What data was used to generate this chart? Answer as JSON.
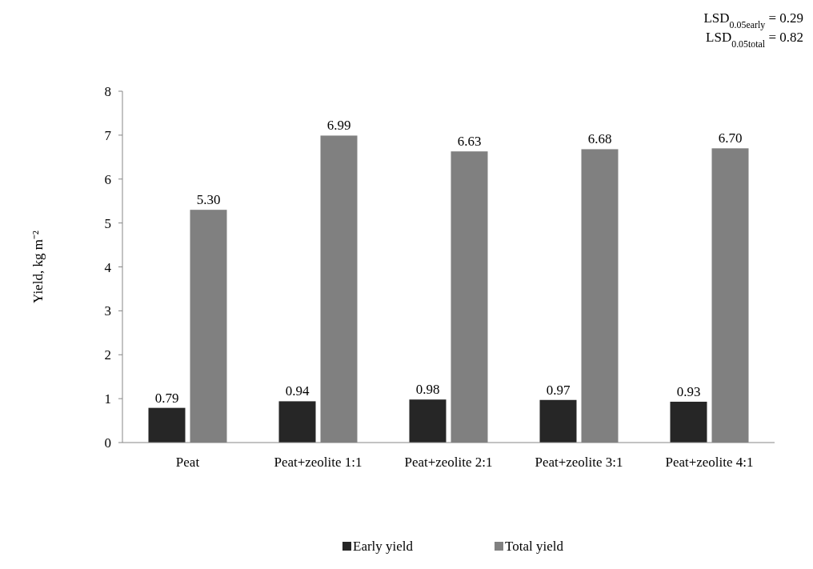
{
  "chart_data": {
    "type": "bar",
    "ylabel": "Yield, kg m⁻²",
    "categories": [
      "Peat",
      "Peat+zeolite 1:1",
      "Peat+zeolite 2:1",
      "Peat+zeolite 3:1",
      "Peat+zeolite 4:1"
    ],
    "series": [
      {
        "name": "Early yield",
        "color": "#262626",
        "values": [
          0.79,
          0.94,
          0.98,
          0.97,
          0.93
        ],
        "value_labels": [
          "0.79",
          "0.94",
          "0.98",
          "0.97",
          "0.93"
        ]
      },
      {
        "name": "Total yield",
        "color": "#808080",
        "values": [
          5.3,
          6.99,
          6.63,
          6.68,
          6.7
        ],
        "value_labels": [
          "5.30",
          "6.99",
          "6.63",
          "6.68",
          "6.70"
        ]
      }
    ],
    "ylim": [
      0,
      8
    ],
    "yticks": [
      0,
      1,
      2,
      3,
      4,
      5,
      6,
      7,
      8
    ],
    "grid": false,
    "legend": "bottom",
    "annotations": [
      "LSD$_{0.05early}$ = 0.29",
      "LSD$_{0.05total}$ = 0.82"
    ]
  }
}
